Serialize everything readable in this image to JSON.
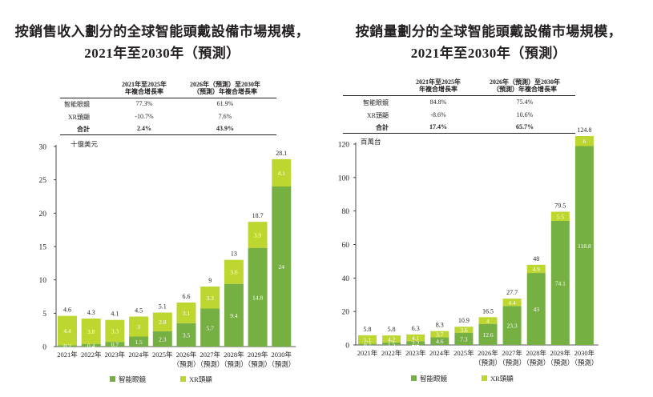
{
  "colors": {
    "smart_glasses": "#76b043",
    "xr_headset": "#bed730",
    "axis": "#231f20",
    "inner_text": "#ffffff"
  },
  "left": {
    "title_line1": "按銷售收入劃分的全球智能頭戴設備市場規模，",
    "title_line2": "2021年至2030年（預測）",
    "cagr": {
      "header1_line1": "2021年至2025年",
      "header1_line2": "年複合增長率",
      "header2_line1": "2026年（預測）至2030年",
      "header2_line2": "（預測）年複合增長率",
      "rows": [
        {
          "label": "智能眼鏡",
          "v1": "77.3%",
          "v2": "61.9%",
          "bold": false
        },
        {
          "label": "XR頭顯",
          "v1": "-10.7%",
          "v2": "7.6%",
          "bold": false
        },
        {
          "label": "合計",
          "v1": "2.4%",
          "v2": "43.9%",
          "bold": true
        }
      ]
    },
    "legend": {
      "smart_glasses": "智能眼鏡",
      "xr_headset": "XR頭顯"
    }
  },
  "right": {
    "title_line1": "按銷量劃分的全球智能頭戴設備市場規模，",
    "title_line2": "2021年至2030年（預測）",
    "cagr": {
      "header1_line1": "2021年至2025年",
      "header1_line2": "年複合增長率",
      "header2_line1": "2026年（預測）至2030年",
      "header2_line2": "（預測）年複合增長率",
      "rows": [
        {
          "label": "智能眼鏡",
          "v1": "84.8%",
          "v2": "75.4%",
          "bold": false
        },
        {
          "label": "XR頭顯",
          "v1": "-8.6%",
          "v2": "10.6%",
          "bold": false
        },
        {
          "label": "合計",
          "v1": "17.4%",
          "v2": "65.7%",
          "bold": true
        }
      ]
    },
    "legend": {
      "smart_glasses": "智能眼鏡",
      "xr_headset": "XR頭顯"
    }
  },
  "chart_data": [
    {
      "type": "bar",
      "stacked": true,
      "title": "按銷售收入劃分的全球智能頭戴設備市場規模，2021年至2030年（預測）",
      "ylabel": "十億美元",
      "ylim": [
        0,
        30
      ],
      "yticks": [
        0,
        5,
        10,
        15,
        20,
        25,
        30
      ],
      "categories": [
        [
          "2021年"
        ],
        [
          "2022年"
        ],
        [
          "2023年"
        ],
        [
          "2024年"
        ],
        [
          "2025年"
        ],
        [
          "2026年",
          "（預測）"
        ],
        [
          "2027年",
          "（預測）"
        ],
        [
          "2028年",
          "（預測）"
        ],
        [
          "2029年",
          "（預測）"
        ],
        [
          "2030年",
          "（預測）"
        ]
      ],
      "series": [
        {
          "name": "智能眼鏡",
          "values": [
            0.2,
            0.4,
            0.7,
            1.5,
            2.3,
            3.5,
            5.7,
            9.4,
            14.8,
            24.0
          ]
        },
        {
          "name": "XR頭顯",
          "values": [
            4.4,
            3.8,
            3.3,
            3.0,
            2.8,
            3.1,
            3.3,
            3.6,
            3.9,
            4.1
          ]
        }
      ],
      "totals": [
        4.6,
        4.3,
        4.1,
        4.5,
        5.1,
        6.6,
        9.0,
        13.0,
        18.7,
        28.1
      ],
      "legend_position": "bottom"
    },
    {
      "type": "bar",
      "stacked": true,
      "title": "按銷量劃分的全球智能頭戴設備市場規模，2021年至2030年（預測）",
      "ylabel": "百萬台",
      "ylim": [
        0,
        120
      ],
      "yticks": [
        0,
        20,
        40,
        60,
        80,
        100,
        120
      ],
      "categories": [
        [
          "2021年"
        ],
        [
          "2022年"
        ],
        [
          "2023年"
        ],
        [
          "2024年"
        ],
        [
          "2025年"
        ],
        [
          "2026年",
          "（預測）"
        ],
        [
          "2027年",
          "（預測）"
        ],
        [
          "2028年",
          "（預測）"
        ],
        [
          "2029年",
          "（預測）"
        ],
        [
          "2030年",
          "（預測）"
        ]
      ],
      "series": [
        {
          "name": "智能眼鏡",
          "values": [
            0.7,
            1.5,
            2.2,
            4.6,
            7.3,
            12.6,
            23.3,
            43.0,
            74.1,
            118.8
          ]
        },
        {
          "name": "XR頭顯",
          "values": [
            5.1,
            4.2,
            4.1,
            3.7,
            3.6,
            4.0,
            4.4,
            4.9,
            5.5,
            6.0
          ]
        }
      ],
      "totals": [
        5.8,
        5.8,
        6.3,
        8.3,
        10.9,
        16.5,
        27.7,
        48.0,
        79.5,
        124.8
      ],
      "legend_position": "bottom"
    }
  ]
}
